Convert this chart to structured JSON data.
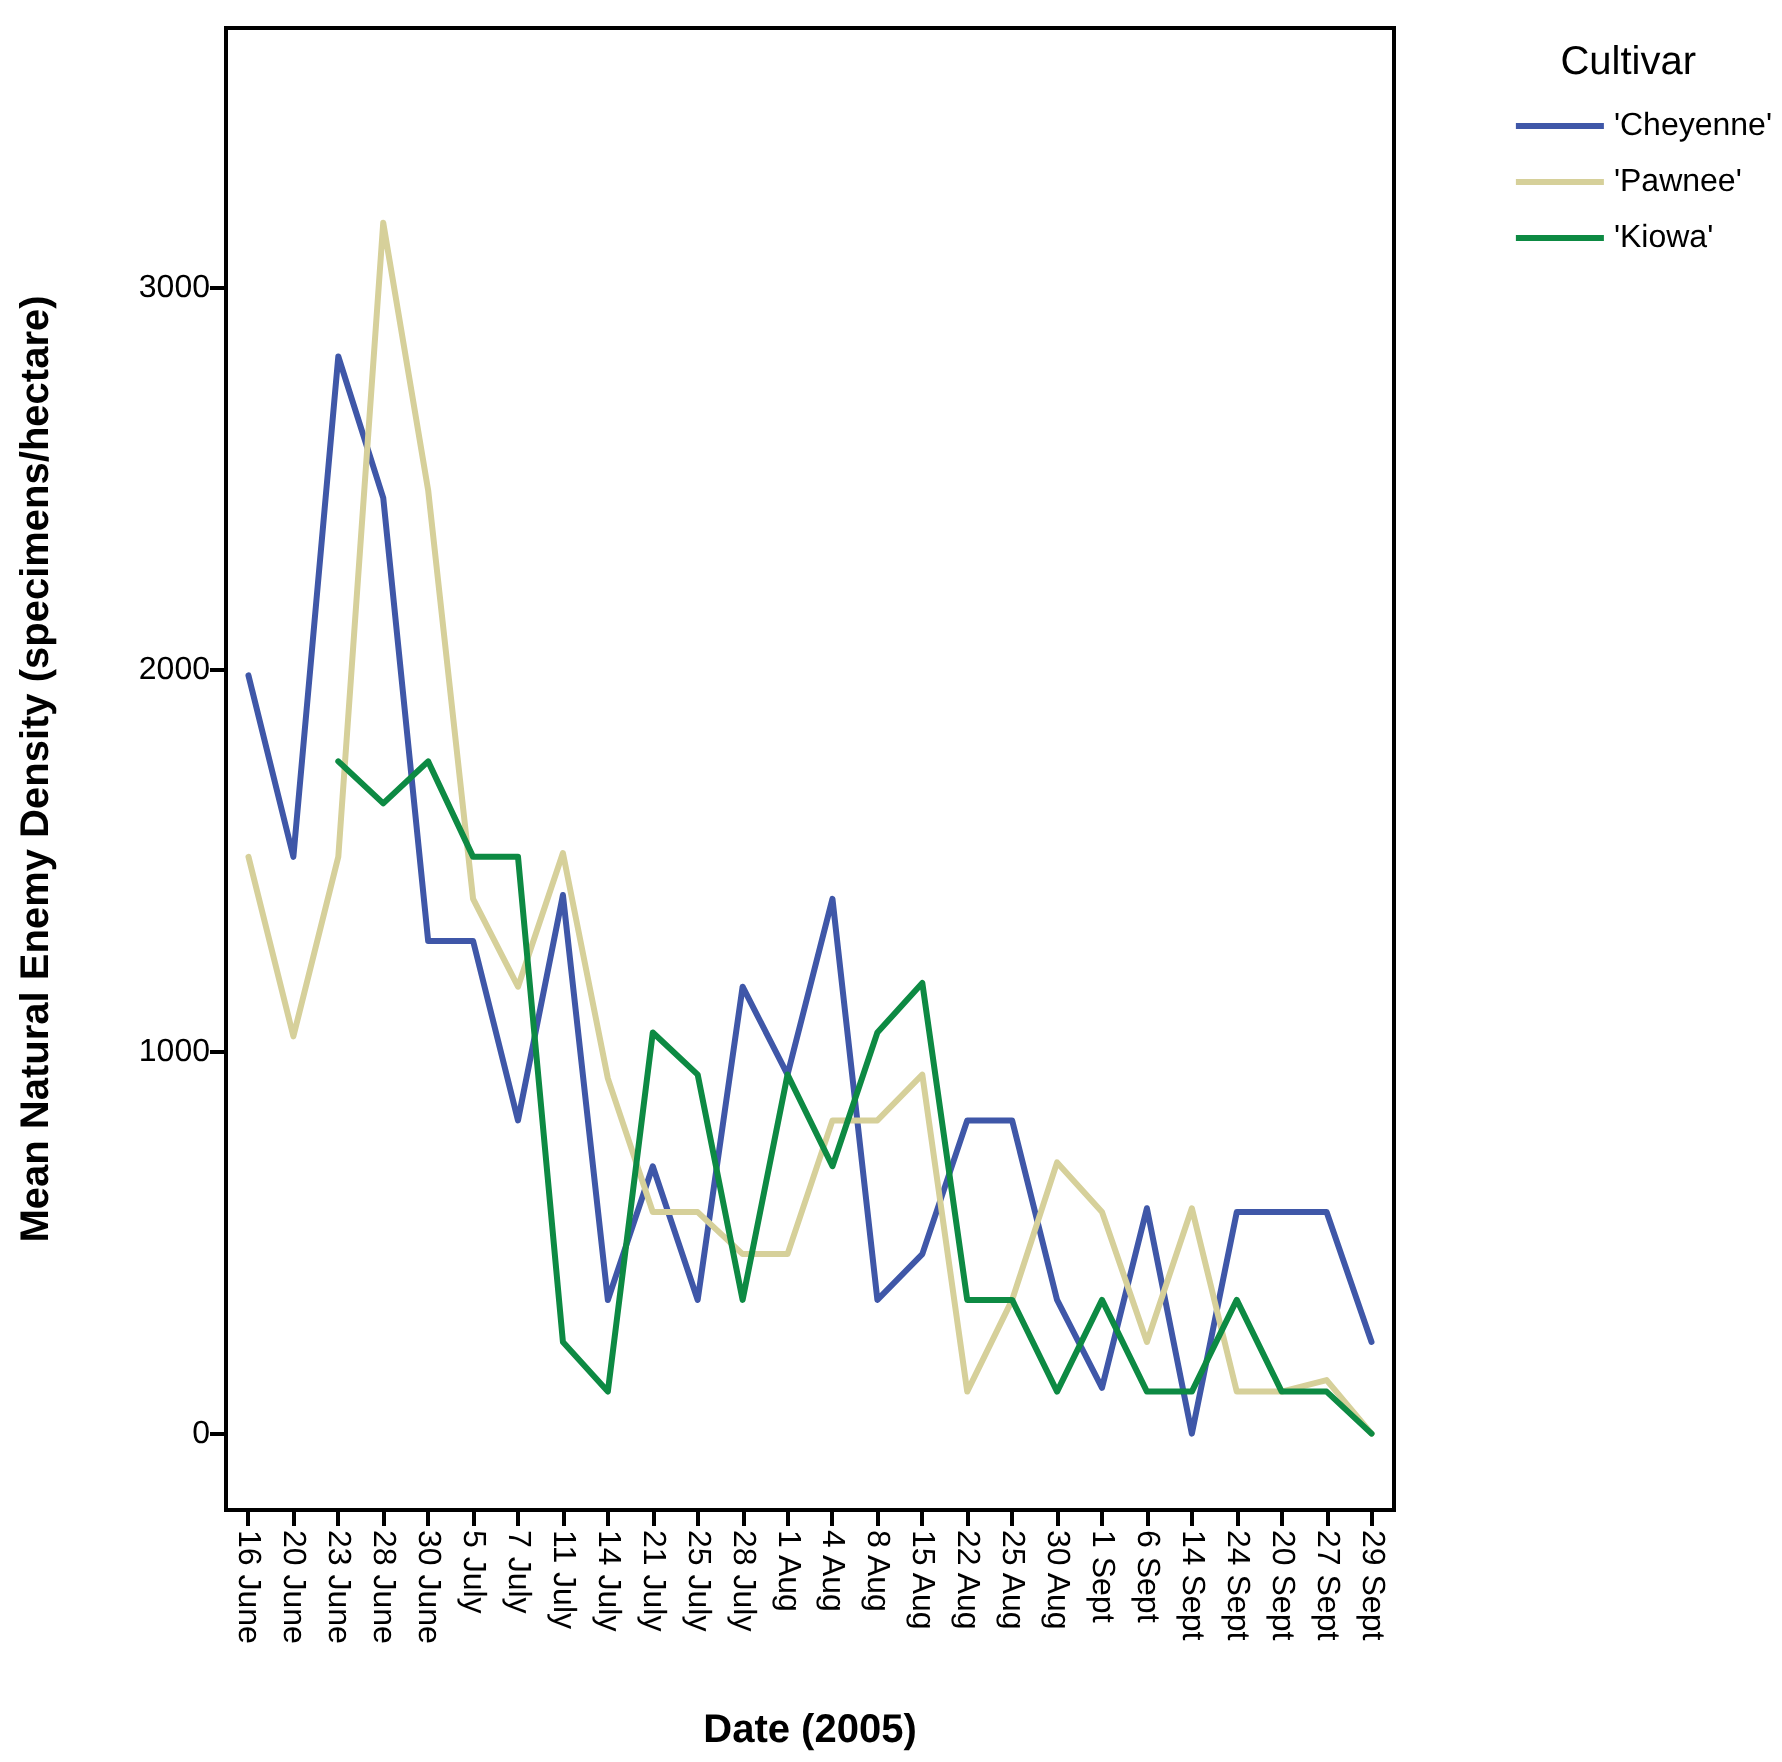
{
  "chart_data": {
    "type": "line",
    "xlabel": "Date (2005)",
    "ylabel": "Mean Natural Enemy Density (specimens/hectare)",
    "legend_title": "Cultivar",
    "legend": "top right",
    "grid": false,
    "marker": "none",
    "line_style": "solid",
    "categories": [
      "16 June",
      "20 June",
      "23 June",
      "28 June",
      "30 June",
      "5 July",
      "7 July",
      "11 July",
      "14 July",
      "21 July",
      "25 July",
      "28 July",
      "1 Aug",
      "4 Aug",
      "8 Aug",
      "15 Aug",
      "22 Aug",
      "25 Aug",
      "30 Aug",
      "1 Sept",
      "6 Sept",
      "14 Sept",
      "24 Sept",
      "20 Sept",
      "27 Sept",
      "29 Sept"
    ],
    "ylim": [
      -200,
      3680
    ],
    "yticks": [
      0,
      1000,
      2000,
      3000
    ],
    "series": [
      {
        "name": "'Cheyenne'",
        "color": "#3f57a8",
        "values": [
          1985,
          1510,
          2820,
          2450,
          1290,
          1290,
          820,
          1410,
          350,
          700,
          350,
          1170,
          940,
          1400,
          350,
          470,
          820,
          820,
          350,
          120,
          590,
          0,
          580,
          580,
          580,
          240
        ]
      },
      {
        "name": "'Pawnee'",
        "color": "#d6d09a",
        "values": [
          1510,
          1040,
          1510,
          3170,
          2470,
          1400,
          1170,
          1520,
          930,
          580,
          580,
          470,
          470,
          820,
          820,
          940,
          110,
          350,
          710,
          580,
          240,
          590,
          110,
          110,
          140,
          0
        ]
      },
      {
        "name": "'Kiowa'",
        "color": "#0d8a43",
        "values": [
          null,
          null,
          1760,
          1650,
          1760,
          1510,
          1510,
          240,
          110,
          1050,
          940,
          350,
          940,
          700,
          1050,
          1180,
          350,
          350,
          110,
          350,
          110,
          110,
          350,
          110,
          110,
          0
        ]
      }
    ]
  }
}
